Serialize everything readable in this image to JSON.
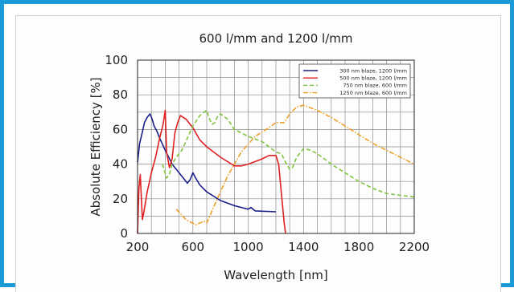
{
  "colors": {
    "frame": "#1a9ad6",
    "grid": "#8c8c8c"
  },
  "chart_data": {
    "type": "line",
    "title": "600 l/mm and 1200 l/mm",
    "xlabel": "Wavelength [nm]",
    "ylabel": "Absolute Efficiency [%]",
    "xlim": [
      200,
      2200
    ],
    "ylim": [
      0,
      100
    ],
    "x_ticks": [
      200,
      600,
      1000,
      1400,
      1800,
      2200
    ],
    "y_ticks": [
      0,
      20,
      40,
      60,
      80,
      100
    ],
    "grid": true,
    "legend_position": "top-right",
    "series": [
      {
        "name": "300 nm blaze,  1200 l/mm",
        "color": "#1b1f8a",
        "dash": "solid",
        "points": [
          [
            200,
            41
          ],
          [
            215,
            52
          ],
          [
            230,
            57
          ],
          [
            250,
            64
          ],
          [
            270,
            67
          ],
          [
            290,
            69
          ],
          [
            305,
            66
          ],
          [
            320,
            62
          ],
          [
            340,
            59
          ],
          [
            360,
            55
          ],
          [
            400,
            48
          ],
          [
            450,
            40
          ],
          [
            500,
            35
          ],
          [
            540,
            31
          ],
          [
            560,
            29
          ],
          [
            580,
            31
          ],
          [
            600,
            35
          ],
          [
            620,
            32
          ],
          [
            650,
            28
          ],
          [
            700,
            24
          ],
          [
            800,
            19
          ],
          [
            900,
            16
          ],
          [
            1000,
            14
          ],
          [
            1020,
            15
          ],
          [
            1050,
            13
          ],
          [
            1200,
            12.5
          ]
        ]
      },
      {
        "name": "500 nm blaze,  1200 l/mm",
        "color": "#e02020",
        "dash": "solid",
        "points": [
          [
            200,
            0
          ],
          [
            210,
            26
          ],
          [
            220,
            34
          ],
          [
            235,
            8
          ],
          [
            245,
            12
          ],
          [
            270,
            24
          ],
          [
            300,
            35
          ],
          [
            330,
            44
          ],
          [
            360,
            55
          ],
          [
            385,
            63
          ],
          [
            400,
            71
          ],
          [
            410,
            47
          ],
          [
            430,
            38
          ],
          [
            450,
            43
          ],
          [
            470,
            58
          ],
          [
            490,
            64
          ],
          [
            510,
            68
          ],
          [
            550,
            66
          ],
          [
            600,
            61
          ],
          [
            650,
            54
          ],
          [
            700,
            50
          ],
          [
            800,
            44
          ],
          [
            900,
            39
          ],
          [
            950,
            39
          ],
          [
            1000,
            40
          ],
          [
            1100,
            43
          ],
          [
            1150,
            45
          ],
          [
            1200,
            45
          ],
          [
            1220,
            40
          ],
          [
            1260,
            6
          ],
          [
            1270,
            0
          ]
        ]
      },
      {
        "name": "750 nm blaze,   600 l/mm",
        "color": "#7ec43c",
        "dash": "5,3",
        "points": [
          [
            380,
            40
          ],
          [
            395,
            36
          ],
          [
            410,
            32
          ],
          [
            430,
            34
          ],
          [
            450,
            40
          ],
          [
            480,
            44
          ],
          [
            520,
            48
          ],
          [
            560,
            55
          ],
          [
            600,
            62
          ],
          [
            650,
            68
          ],
          [
            680,
            70
          ],
          [
            700,
            71
          ],
          [
            720,
            66
          ],
          [
            740,
            63
          ],
          [
            760,
            64
          ],
          [
            780,
            68
          ],
          [
            800,
            69
          ],
          [
            850,
            66
          ],
          [
            900,
            60
          ],
          [
            1000,
            56
          ],
          [
            1100,
            53
          ],
          [
            1200,
            47
          ],
          [
            1240,
            46
          ],
          [
            1270,
            41
          ],
          [
            1300,
            37
          ],
          [
            1320,
            38
          ],
          [
            1350,
            44
          ],
          [
            1400,
            49
          ],
          [
            1450,
            48
          ],
          [
            1500,
            46
          ],
          [
            1600,
            40
          ],
          [
            1700,
            35
          ],
          [
            1800,
            30
          ],
          [
            1900,
            26
          ],
          [
            2000,
            23
          ],
          [
            2100,
            22
          ],
          [
            2200,
            21
          ]
        ]
      },
      {
        "name": "1250 nm blaze,   600 l/mm",
        "color": "#f0a028",
        "dash": "6,2,1.5,2",
        "points": [
          [
            480,
            14
          ],
          [
            550,
            8
          ],
          [
            620,
            5
          ],
          [
            680,
            7
          ],
          [
            700,
            6
          ],
          [
            760,
            17
          ],
          [
            850,
            33
          ],
          [
            950,
            47
          ],
          [
            1050,
            56
          ],
          [
            1150,
            61
          ],
          [
            1200,
            64
          ],
          [
            1260,
            64
          ],
          [
            1300,
            69
          ],
          [
            1350,
            73
          ],
          [
            1400,
            74
          ],
          [
            1500,
            71
          ],
          [
            1600,
            67
          ],
          [
            1700,
            62
          ],
          [
            1800,
            57
          ],
          [
            1900,
            52
          ],
          [
            2000,
            48
          ],
          [
            2100,
            44
          ],
          [
            2200,
            40
          ]
        ]
      }
    ]
  }
}
